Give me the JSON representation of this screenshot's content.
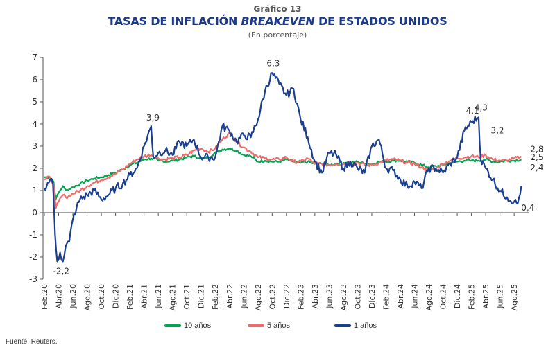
{
  "header": {
    "number": "Gráfico 13",
    "title_part1": "TASAS DE INFLACIÓN ",
    "title_italic": "BREAKEVEN",
    "title_part2": " DE ESTADOS UNIDOS",
    "subtitle": "(En porcentaje)"
  },
  "source": "Fuente: Reuters.",
  "chart_data": {
    "type": "line",
    "title": "TASAS DE INFLACIÓN BREAKEVEN DE ESTADOS UNIDOS",
    "subtitle": "(En porcentaje)",
    "xlabel": "",
    "ylabel": "",
    "ylim": [
      -3,
      7
    ],
    "yticks": [
      "7",
      "6",
      "5",
      "4",
      "3",
      "2",
      "1",
      "0",
      "-1",
      "-2",
      "-3"
    ],
    "x_start": "Feb.20",
    "x_unit": "months since Feb.20",
    "xlim_months": [
      0,
      68
    ],
    "x_tick_labels": [
      "Feb.20",
      "Abr.20",
      "Jun.20",
      "Ago.20",
      "Oct.20",
      "Dic.20",
      "Feb.21",
      "Abr.21",
      "Jun.21",
      "Ago.21",
      "Oct.21",
      "Dic.21",
      "Feb.22",
      "Abr.22",
      "Jun.22",
      "Ago.22",
      "Oct.22",
      "Dic.22",
      "Feb.23",
      "Abr.23",
      "Jun.23",
      "Ago.23",
      "Oct.23",
      "Dic.23",
      "Feb.24",
      "Abr.24",
      "Jun.24",
      "Ago.24",
      "Oct.24",
      "Dic.24",
      "Feb.25",
      "Abr.25",
      "Jun.25",
      "Ago.25"
    ],
    "grid": false,
    "legend_position": "bottom",
    "series": [
      {
        "name": "10 años",
        "color": "#00a651",
        "points": [
          [
            0,
            1.6
          ],
          [
            0.8,
            1.6
          ],
          [
            1.3,
            1.4
          ],
          [
            1.6,
            0.6
          ],
          [
            2,
            0.9
          ],
          [
            2.6,
            1.2
          ],
          [
            3,
            1.0
          ],
          [
            4,
            1.15
          ],
          [
            5,
            1.3
          ],
          [
            6,
            1.45
          ],
          [
            7,
            1.55
          ],
          [
            8,
            1.6
          ],
          [
            9,
            1.7
          ],
          [
            10,
            1.8
          ],
          [
            11,
            1.95
          ],
          [
            12,
            2.15
          ],
          [
            13,
            2.25
          ],
          [
            14,
            2.4
          ],
          [
            15,
            2.45
          ],
          [
            16,
            2.35
          ],
          [
            17,
            2.3
          ],
          [
            18,
            2.35
          ],
          [
            19,
            2.4
          ],
          [
            20,
            2.5
          ],
          [
            21,
            2.55
          ],
          [
            22,
            2.45
          ],
          [
            23,
            2.5
          ],
          [
            24,
            2.7
          ],
          [
            25,
            2.85
          ],
          [
            26,
            2.9
          ],
          [
            27,
            2.8
          ],
          [
            28,
            2.6
          ],
          [
            29,
            2.55
          ],
          [
            30,
            2.3
          ],
          [
            31,
            2.35
          ],
          [
            32,
            2.3
          ],
          [
            33,
            2.3
          ],
          [
            34,
            2.4
          ],
          [
            35,
            2.3
          ],
          [
            36,
            2.25
          ],
          [
            37,
            2.3
          ],
          [
            38,
            2.2
          ],
          [
            39,
            2.2
          ],
          [
            40,
            2.15
          ],
          [
            41,
            2.2
          ],
          [
            42,
            2.25
          ],
          [
            43,
            2.25
          ],
          [
            44,
            2.3
          ],
          [
            45,
            2.2
          ],
          [
            46,
            2.2
          ],
          [
            47,
            2.3
          ],
          [
            48,
            2.3
          ],
          [
            49,
            2.35
          ],
          [
            50,
            2.35
          ],
          [
            51,
            2.3
          ],
          [
            52,
            2.25
          ],
          [
            53,
            2.15
          ],
          [
            54,
            2.05
          ],
          [
            55,
            2.1
          ],
          [
            56,
            2.15
          ],
          [
            57,
            2.25
          ],
          [
            58,
            2.3
          ],
          [
            59,
            2.35
          ],
          [
            60,
            2.35
          ],
          [
            61,
            2.35
          ],
          [
            62,
            2.4
          ],
          [
            63,
            2.3
          ],
          [
            64,
            2.3
          ],
          [
            65,
            2.35
          ],
          [
            66,
            2.35
          ],
          [
            67,
            2.4
          ]
        ]
      },
      {
        "name": "5 años",
        "color": "#f26b6b",
        "points": [
          [
            0,
            1.5
          ],
          [
            0.8,
            1.6
          ],
          [
            1.3,
            1.3
          ],
          [
            1.6,
            0.2
          ],
          [
            2,
            0.5
          ],
          [
            2.6,
            0.8
          ],
          [
            3,
            0.7
          ],
          [
            4,
            0.85
          ],
          [
            5,
            1.0
          ],
          [
            6,
            1.2
          ],
          [
            7,
            1.35
          ],
          [
            8,
            1.5
          ],
          [
            9,
            1.6
          ],
          [
            10,
            1.75
          ],
          [
            11,
            1.95
          ],
          [
            12,
            2.2
          ],
          [
            13,
            2.4
          ],
          [
            14,
            2.55
          ],
          [
            15,
            2.6
          ],
          [
            16,
            2.45
          ],
          [
            17,
            2.4
          ],
          [
            18,
            2.45
          ],
          [
            19,
            2.5
          ],
          [
            20,
            2.6
          ],
          [
            21,
            2.8
          ],
          [
            22,
            2.9
          ],
          [
            23,
            2.75
          ],
          [
            24,
            2.9
          ],
          [
            25,
            3.3
          ],
          [
            26,
            3.6
          ],
          [
            27,
            3.2
          ],
          [
            28,
            2.95
          ],
          [
            29,
            2.75
          ],
          [
            30,
            2.5
          ],
          [
            31,
            2.45
          ],
          [
            32,
            2.4
          ],
          [
            33,
            2.4
          ],
          [
            34,
            2.5
          ],
          [
            35,
            2.3
          ],
          [
            36,
            2.3
          ],
          [
            37,
            2.45
          ],
          [
            38,
            2.2
          ],
          [
            39,
            2.2
          ],
          [
            40,
            2.15
          ],
          [
            41,
            2.2
          ],
          [
            42,
            2.2
          ],
          [
            43,
            2.2
          ],
          [
            44,
            2.25
          ],
          [
            45,
            2.15
          ],
          [
            46,
            2.15
          ],
          [
            47,
            2.25
          ],
          [
            48,
            2.35
          ],
          [
            49,
            2.4
          ],
          [
            50,
            2.35
          ],
          [
            51,
            2.25
          ],
          [
            52,
            2.2
          ],
          [
            53,
            2.05
          ],
          [
            54,
            1.9
          ],
          [
            55,
            2.0
          ],
          [
            56,
            2.2
          ],
          [
            57,
            2.35
          ],
          [
            58,
            2.45
          ],
          [
            59,
            2.5
          ],
          [
            60,
            2.55
          ],
          [
            61,
            2.5
          ],
          [
            62,
            2.6
          ],
          [
            63,
            2.4
          ],
          [
            64,
            2.35
          ],
          [
            65,
            2.35
          ],
          [
            66,
            2.45
          ],
          [
            67,
            2.5
          ]
        ]
      },
      {
        "name": "1 años",
        "color": "#1a3f91",
        "points": [
          [
            0,
            1.1
          ],
          [
            0.8,
            1.5
          ],
          [
            1.2,
            1.3
          ],
          [
            1.5,
            -1.0
          ],
          [
            1.8,
            -2.2
          ],
          [
            2.2,
            -1.8
          ],
          [
            2.6,
            -2.2
          ],
          [
            3,
            -1.5
          ],
          [
            3.5,
            -1.3
          ],
          [
            4,
            -0.3
          ],
          [
            4.5,
            0.2
          ],
          [
            5,
            0.6
          ],
          [
            6,
            0.8
          ],
          [
            7,
            1.0
          ],
          [
            8,
            0.6
          ],
          [
            9,
            0.8
          ],
          [
            10,
            1.1
          ],
          [
            11,
            1.3
          ],
          [
            12,
            1.7
          ],
          [
            13,
            2.0
          ],
          [
            14,
            3.0
          ],
          [
            15,
            3.9
          ],
          [
            15.3,
            2.5
          ],
          [
            16,
            2.7
          ],
          [
            17,
            2.8
          ],
          [
            18,
            2.6
          ],
          [
            19,
            3.2
          ],
          [
            20,
            3.0
          ],
          [
            21,
            3.3
          ],
          [
            22,
            2.5
          ],
          [
            23,
            2.5
          ],
          [
            24,
            2.5
          ],
          [
            25,
            3.9
          ],
          [
            26,
            3.7
          ],
          [
            27,
            3.2
          ],
          [
            28,
            3.5
          ],
          [
            29,
            3.4
          ],
          [
            30,
            4.2
          ],
          [
            31,
            5.5
          ],
          [
            32,
            6.3
          ],
          [
            33,
            5.8
          ],
          [
            34,
            5.3
          ],
          [
            35,
            5.6
          ],
          [
            36,
            4.2
          ],
          [
            37,
            3.4
          ],
          [
            38,
            2.3
          ],
          [
            39,
            1.8
          ],
          [
            40,
            2.7
          ],
          [
            41,
            2.6
          ],
          [
            42,
            2.0
          ],
          [
            43,
            2.3
          ],
          [
            44,
            2.0
          ],
          [
            45,
            1.8
          ],
          [
            46,
            3.0
          ],
          [
            47,
            3.3
          ],
          [
            48,
            2.0
          ],
          [
            49,
            1.9
          ],
          [
            50,
            1.5
          ],
          [
            51,
            1.2
          ],
          [
            52,
            1.4
          ],
          [
            53,
            1.1
          ],
          [
            54,
            2.0
          ],
          [
            55,
            2.0
          ],
          [
            56,
            1.8
          ],
          [
            57,
            2.2
          ],
          [
            58,
            2.5
          ],
          [
            59,
            3.7
          ],
          [
            60,
            4.1
          ],
          [
            61,
            4.3
          ],
          [
            61.3,
            2.4
          ],
          [
            62,
            2.0
          ],
          [
            63,
            1.5
          ],
          [
            64,
            1.0
          ],
          [
            65,
            0.7
          ],
          [
            66,
            0.5
          ],
          [
            66.5,
            0.4
          ],
          [
            67,
            1.2
          ]
        ]
      }
    ],
    "annotations": [
      "-2,2",
      "3,9",
      "6,3",
      "4,3",
      "0,4",
      "4,1",
      "3,2",
      "2,8",
      "2,5",
      "2,4"
    ]
  }
}
